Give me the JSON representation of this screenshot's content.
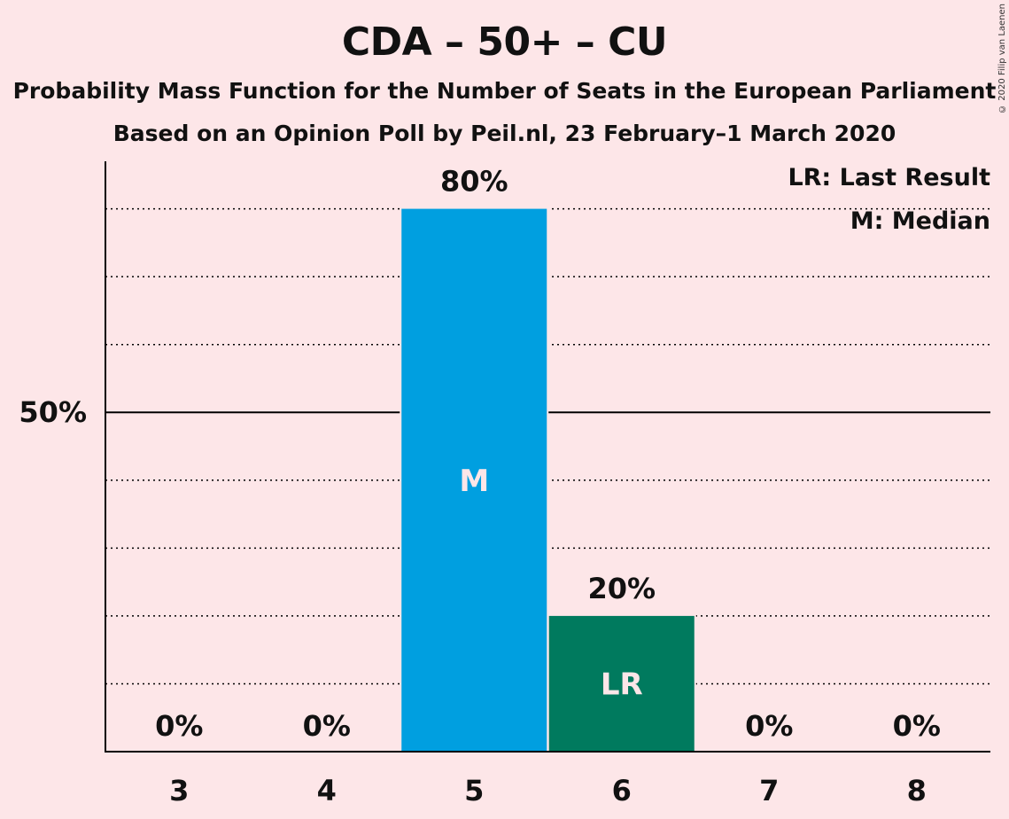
{
  "header": {
    "title": "CDA – 50+ – CU",
    "subtitle1": "Probability Mass Function for the Number of Seats in the European Parliament",
    "subtitle2": "Based on an Opinion Poll by Peil.nl, 23 February–1 March 2020",
    "copyright": "© 2020 Filip van Laenen"
  },
  "legend": {
    "lr": "LR: Last Result",
    "m": "M: Median"
  },
  "colors": {
    "median_bar": "#009FE0",
    "last_result_bar": "#007A5E",
    "zero_bar": "#000000",
    "background": "#FDE6E8"
  },
  "chart_data": {
    "type": "bar",
    "categories": [
      "3",
      "4",
      "5",
      "6",
      "7",
      "8"
    ],
    "values": [
      0,
      0,
      80,
      20,
      0,
      0
    ],
    "value_labels": [
      "0%",
      "0%",
      "80%",
      "20%",
      "0%",
      "0%"
    ],
    "bar_markers": [
      "",
      "",
      "M",
      "LR",
      "",
      ""
    ],
    "bar_colors": [
      "#000000",
      "#000000",
      "#009FE0",
      "#007A5E",
      "#000000",
      "#000000"
    ],
    "ylim": [
      0,
      87
    ],
    "yticks": [
      {
        "value": 50,
        "label": "50%"
      }
    ],
    "gridlines": [
      10,
      20,
      30,
      40,
      60,
      70,
      80
    ],
    "median_line": 50,
    "grid": true,
    "legend_placement": "top-right"
  }
}
